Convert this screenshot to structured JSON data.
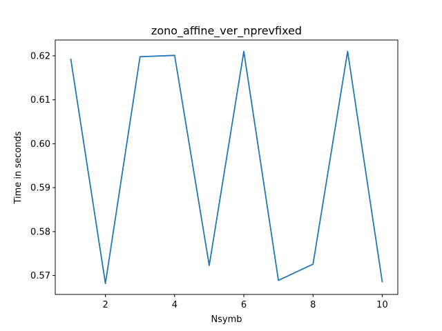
{
  "chart_data": {
    "type": "line",
    "title": "zono_affine_ver_nprevfixed",
    "xlabel": "Nsymb",
    "ylabel": "Time in seconds",
    "xlim": [
      0.55,
      10.45
    ],
    "ylim": [
      0.5657,
      0.6236
    ],
    "grid": false,
    "x_ticks": [
      2,
      4,
      6,
      8,
      10
    ],
    "x_tick_labels": [
      "2",
      "4",
      "6",
      "8",
      "10"
    ],
    "y_ticks": [
      0.57,
      0.58,
      0.59,
      0.6,
      0.61,
      0.62
    ],
    "y_tick_labels": [
      "0.57",
      "0.58",
      "0.59",
      "0.60",
      "0.61",
      "0.62"
    ],
    "series": [
      {
        "color": "#1f77b4",
        "x": [
          1,
          2,
          3,
          4,
          5,
          6,
          7,
          8,
          9,
          10
        ],
        "y": [
          0.6192,
          0.5682,
          0.6198,
          0.6201,
          0.5723,
          0.621,
          0.5689,
          0.5726,
          0.621,
          0.5686
        ]
      }
    ]
  }
}
